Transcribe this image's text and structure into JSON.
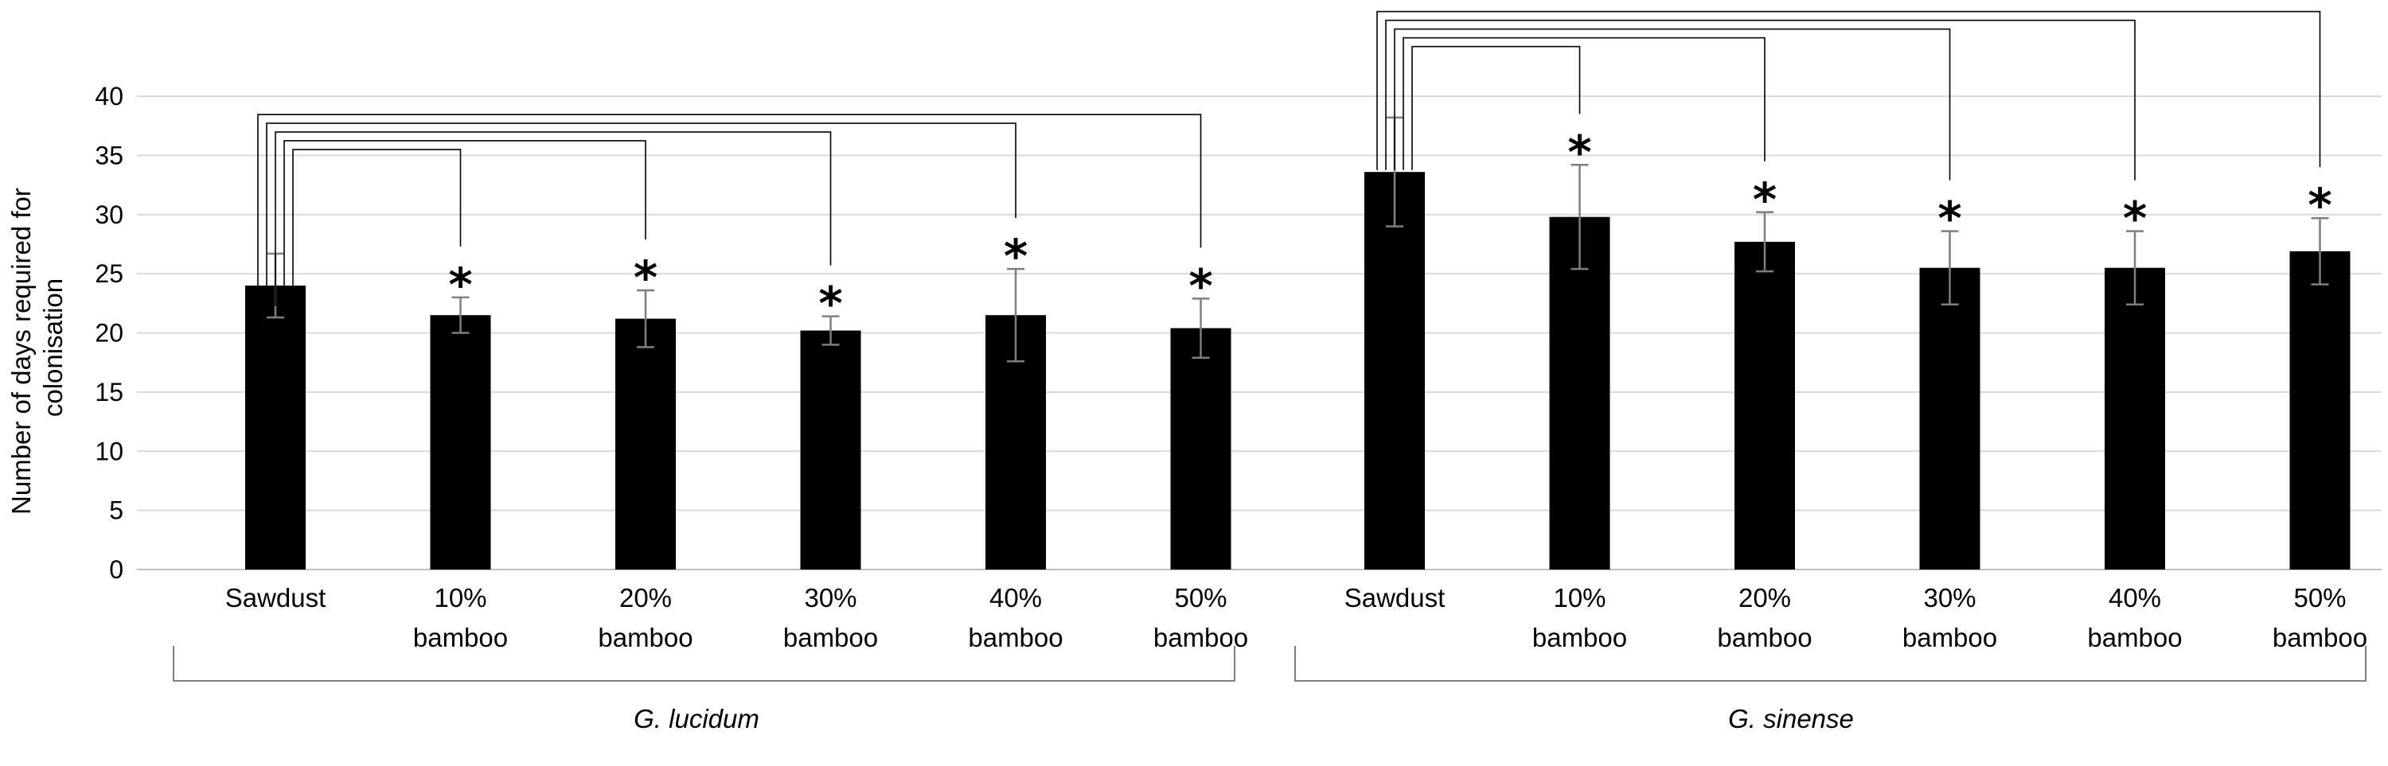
{
  "chart_data": {
    "type": "bar",
    "ylabel_lines": [
      "Number of days required for",
      "colonisation"
    ],
    "ylim": [
      0,
      40
    ],
    "yticks": [
      "0",
      "5",
      "10",
      "15",
      "20",
      "25",
      "30",
      "35",
      "40"
    ],
    "grid": true,
    "bar_color": "#000000",
    "grid_color": "#d9d9d9",
    "error_color": "#7f7f7f",
    "significance_marker": "*",
    "groups": [
      {
        "name": "G. lucidum",
        "categories": [
          [
            "Sawdust"
          ],
          [
            "10%",
            "bamboo"
          ],
          [
            "20%",
            "bamboo"
          ],
          [
            "30%",
            "bamboo"
          ],
          [
            "40%",
            "bamboo"
          ],
          [
            "50%",
            "bamboo"
          ]
        ],
        "values": [
          24,
          21.5,
          21.2,
          20.2,
          21.5,
          20.4
        ],
        "errors": [
          2.7,
          1.5,
          2.4,
          1.2,
          3.9,
          2.5
        ],
        "significant": [
          false,
          true,
          true,
          true,
          true,
          true
        ]
      },
      {
        "name": "G. sinense",
        "categories": [
          [
            "Sawdust"
          ],
          [
            "10%",
            "bamboo"
          ],
          [
            "20%",
            "bamboo"
          ],
          [
            "30%",
            "bamboo"
          ],
          [
            "40%",
            "bamboo"
          ],
          [
            "50%",
            "bamboo"
          ]
        ],
        "values": [
          33.6,
          29.8,
          27.7,
          25.5,
          25.5,
          26.9
        ],
        "errors": [
          4.6,
          4.4,
          2.5,
          3.1,
          3.1,
          2.8
        ],
        "significant": [
          false,
          true,
          true,
          true,
          true,
          true
        ]
      }
    ]
  }
}
